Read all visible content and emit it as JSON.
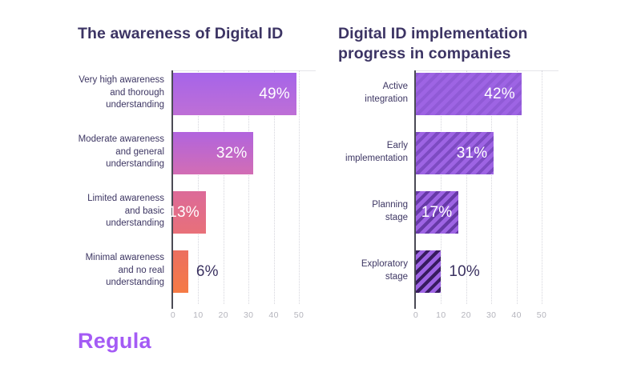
{
  "chart_data": [
    {
      "type": "bar",
      "orientation": "horizontal",
      "title": "The awareness of Digital ID",
      "categories": [
        "Very high awareness\nand thorough\nunderstanding",
        "Moderate awareness\nand general\nunderstanding",
        "Limited awareness\nand basic\nunderstanding",
        "Minimal awareness\nand no real\nunderstanding"
      ],
      "values": [
        49,
        32,
        13,
        6
      ],
      "value_labels": [
        "49%",
        "32%",
        "13%",
        "6%"
      ],
      "xlabel": "",
      "ylabel": "",
      "xlim": [
        0,
        55
      ],
      "xticks": [
        0,
        10,
        20,
        30,
        40,
        50
      ],
      "grid": "vertical-dotted",
      "legend": "none",
      "bar_style": "gradient",
      "bar_colors": [
        [
          "#A664E9",
          "#BE6FD6"
        ],
        [
          "#B164DE",
          "#D26DB4"
        ],
        [
          "#DC6A99",
          "#E87079"
        ],
        [
          "#EC6F60",
          "#F57A45"
        ]
      ]
    },
    {
      "type": "bar",
      "orientation": "horizontal",
      "title": "Digital ID implementation\nprogress in companies",
      "categories": [
        "Active\nintegration",
        "Early\nimplementation",
        "Planning\nstage",
        "Exploratory\nstage"
      ],
      "values": [
        42,
        31,
        17,
        10
      ],
      "value_labels": [
        "42%",
        "31%",
        "17%",
        "10%"
      ],
      "xlabel": "",
      "ylabel": "",
      "xlim": [
        0,
        55
      ],
      "xticks": [
        0,
        10,
        20,
        30,
        40,
        50
      ],
      "grid": "vertical-dotted",
      "legend": "none",
      "bar_style": "hatched",
      "bar_base_color": "#9E64E4",
      "hatch_stripe_colors": [
        "rgba(74,36,140,0.16)",
        "rgba(62,26,128,0.34)",
        "rgba(50,18,110,0.52)",
        "rgba(26,8,58,0.78)"
      ]
    }
  ],
  "branding": {
    "logo_text": "Regula",
    "logo_color": "#A45BF5"
  },
  "theme": {
    "title_color": "#3C3464",
    "label_color": "#3D3663",
    "tick_color": "#B4B4BC",
    "axis_color": "#4B4B55",
    "gridline_color": "#D5D5DC",
    "value_inside_color": "#FFFFFF",
    "value_outside_color": "#3A3160",
    "background": "#FFFFFF"
  }
}
